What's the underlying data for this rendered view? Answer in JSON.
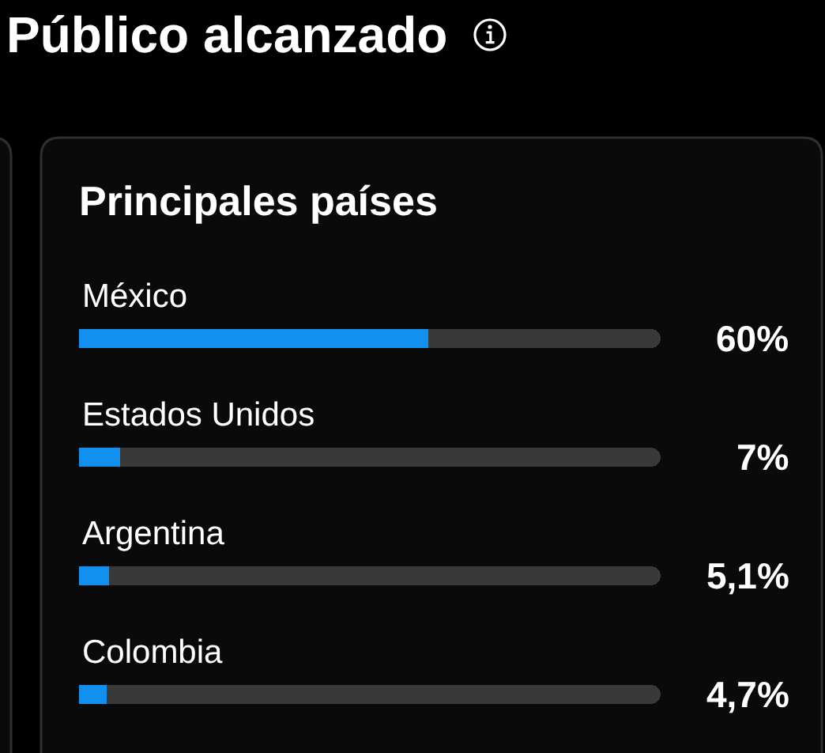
{
  "chart_data": {
    "type": "bar",
    "orientation": "horizontal",
    "stacked": true,
    "title": "Público alcanzado",
    "subtitle": "Principales países",
    "categories": [
      "México",
      "Estados Unidos",
      "Argentina",
      "Colombia"
    ],
    "series": [
      {
        "color": "#1190f0",
        "values": [
          60,
          7,
          5.1,
          4.7
        ],
        "value_labels": [
          "60%",
          "7%",
          "5,1%",
          "4,7%"
        ]
      },
      {
        "color": "#393939",
        "values": [
          40,
          93,
          94.9,
          95.3
        ]
      }
    ],
    "xlim": [
      0,
      100
    ],
    "tick_labels": "y"
  }
}
